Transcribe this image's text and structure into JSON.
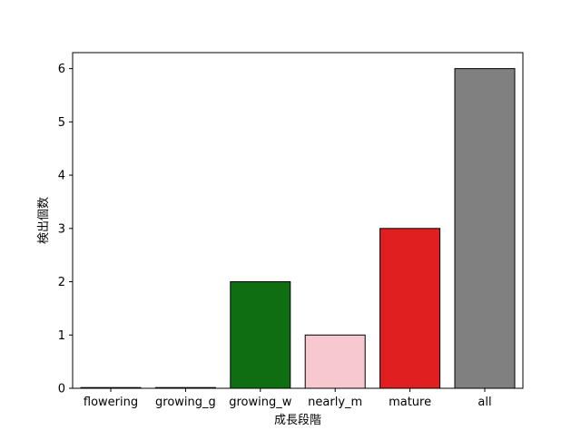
{
  "chart_data": {
    "type": "bar",
    "title": "",
    "xlabel": "成長段階",
    "ylabel": "検出個数",
    "categories": [
      "flowering",
      "growing_g",
      "growing_w",
      "nearly_m",
      "mature",
      "all"
    ],
    "values": [
      0,
      0,
      2,
      1,
      3,
      6
    ],
    "colors": [
      "#1f1f1f",
      "#1f1f1f",
      "#0f6e12",
      "#f8c8d0",
      "#e02020",
      "#808080"
    ],
    "bar_edge_color": "#000000",
    "ylim": [
      0,
      6.3
    ],
    "yticks": [
      0,
      1,
      2,
      3,
      4,
      5,
      6
    ],
    "grid": false,
    "legend": "none"
  }
}
